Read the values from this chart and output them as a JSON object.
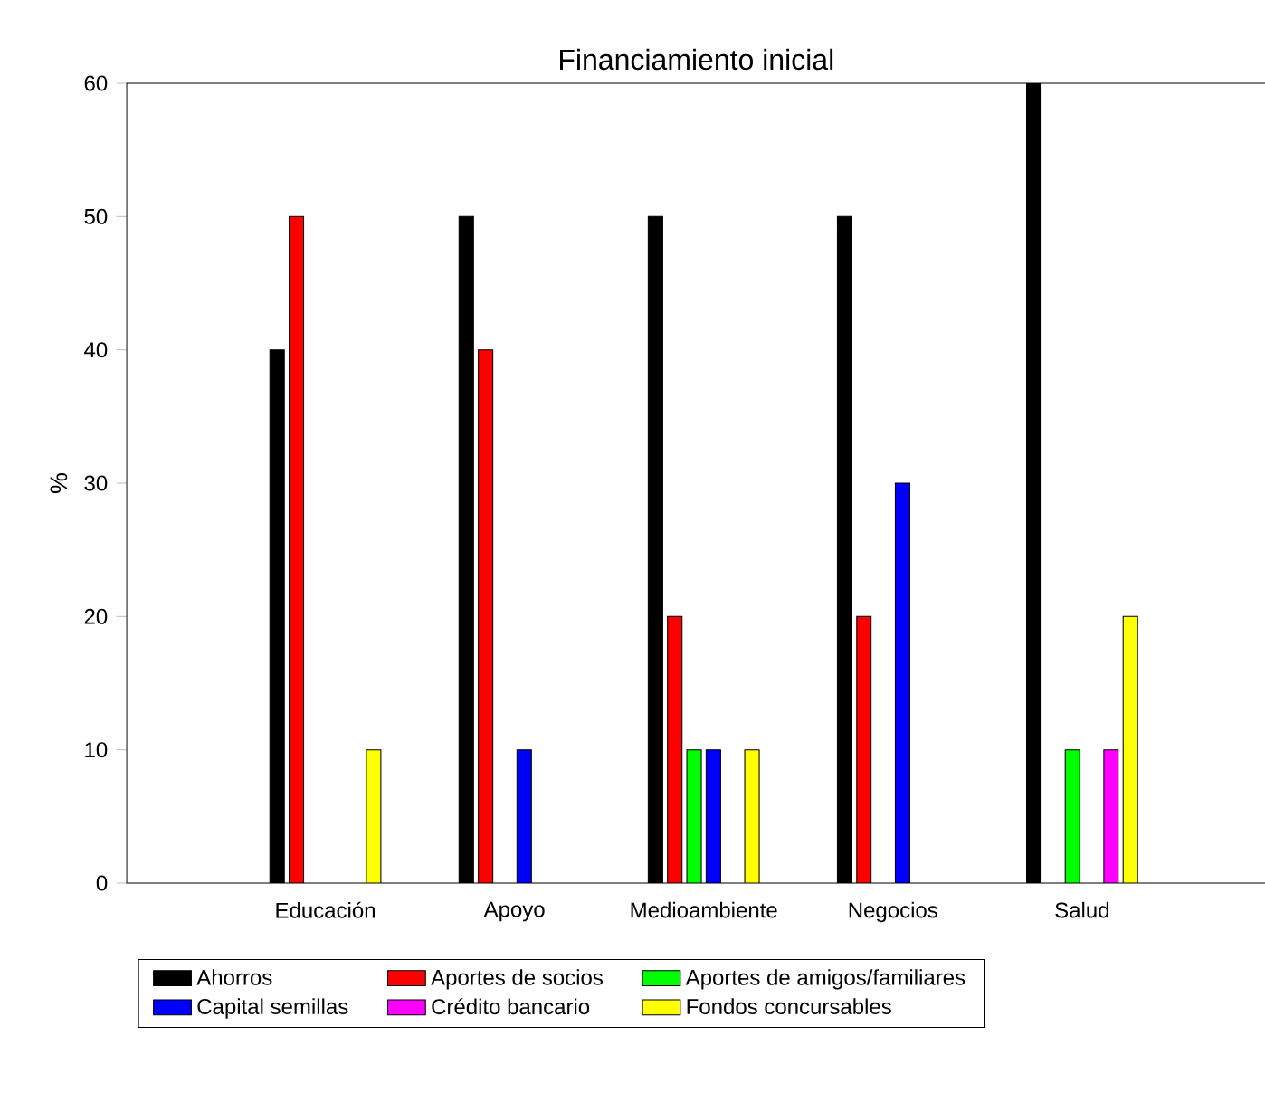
{
  "chart_data": {
    "type": "bar",
    "title": "Financiamiento inicial",
    "ylabel": "%",
    "categories": [
      "Educación",
      "Apoyo",
      "Medioambiente",
      "Negocios",
      "Salud"
    ],
    "series": [
      {
        "name": "Ahorros",
        "color": "#000000",
        "values": [
          40,
          50,
          50,
          50,
          60
        ]
      },
      {
        "name": "Aportes de socios",
        "color": "#ff0000",
        "values": [
          50,
          40,
          20,
          20,
          null
        ]
      },
      {
        "name": "Aportes de amigos/familiares",
        "color": "#00ff00",
        "values": [
          null,
          null,
          10,
          null,
          10
        ]
      },
      {
        "name": "Capital semillas",
        "color": "#0000ff",
        "values": [
          null,
          10,
          10,
          30,
          null
        ]
      },
      {
        "name": "Crédito bancario",
        "color": "#ff00ff",
        "values": [
          null,
          null,
          null,
          null,
          10
        ]
      },
      {
        "name": "Fondos concursables",
        "color": "#ffff00",
        "values": [
          10,
          null,
          10,
          null,
          20
        ]
      }
    ],
    "ylim": [
      0,
      60
    ],
    "yticks": [
      0,
      10,
      20,
      30,
      40,
      50,
      60
    ],
    "legend": "bottom"
  }
}
